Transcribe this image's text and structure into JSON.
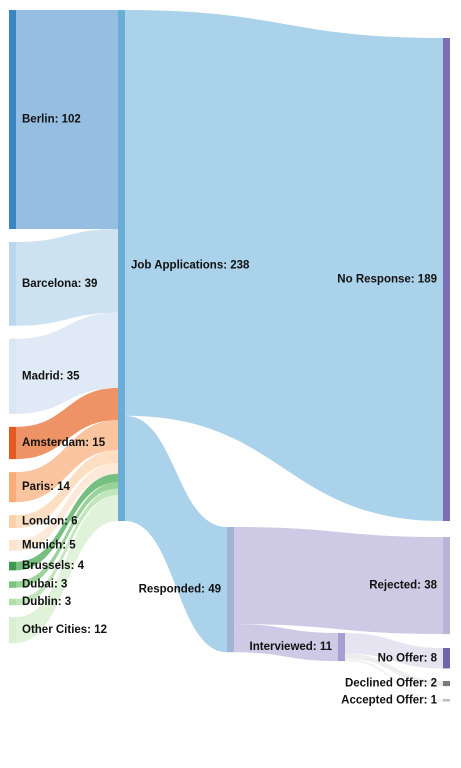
{
  "chart_data": {
    "type": "sankey",
    "title": "",
    "sources": [
      {
        "name": "Berlin",
        "value": 102,
        "label": "Berlin: 102",
        "color": "#3a84c1",
        "link": "#8fbadf"
      },
      {
        "name": "Barcelona",
        "value": 39,
        "label": "Barcelona: 39",
        "color": "#bad6ec",
        "link": "#c9e0f0"
      },
      {
        "name": "Madrid",
        "value": 35,
        "label": "Madrid: 35",
        "color": "#d9e7f5",
        "link": "#dde9f5"
      },
      {
        "name": "Amsterdam",
        "value": 15,
        "label": "Amsterdam: 15",
        "color": "#e45a22",
        "link": "#ec8d5d"
      },
      {
        "name": "Paris",
        "value": 14,
        "label": "Paris: 14",
        "color": "#f8ad76",
        "link": "#f9c199"
      },
      {
        "name": "London",
        "value": 6,
        "label": "London: 6",
        "color": "#fbd0a6",
        "link": "#fcdcc0"
      },
      {
        "name": "Munich",
        "value": 5,
        "label": "Munich: 5",
        "color": "#fde4cd",
        "link": "#fde8d6"
      },
      {
        "name": "Brussels",
        "value": 4,
        "label": "Brussels: 4",
        "color": "#3d9a50",
        "link": "#6fbc79"
      },
      {
        "name": "Dubai",
        "value": 3,
        "label": "Dubai: 3",
        "color": "#79c57d",
        "link": "#93d195"
      },
      {
        "name": "Dublin",
        "value": 3,
        "label": "Dublin: 3",
        "color": "#b0dfaa",
        "link": "#bfe5b8"
      },
      {
        "name": "Other Cities",
        "value": 12,
        "label": "Other Cities: 12",
        "color": "#d8efd1",
        "link": "#def2d8"
      }
    ],
    "total": {
      "name": "Job Applications",
      "value": 238,
      "label": "Job Applications: 238",
      "color": "#6aaed8"
    },
    "stage2": [
      {
        "name": "No Response",
        "value": 189,
        "label": "No Response: 189",
        "color": "#7d6db6",
        "link": "#a6d0ea"
      },
      {
        "name": "Responded",
        "value": 49,
        "label": "Responded: 49",
        "color": "#a3b3d4",
        "link": "#a6d0ea"
      }
    ],
    "stage3": [
      {
        "name": "Rejected",
        "value": 38,
        "label": "Rejected: 38",
        "color": "#b9b3d8",
        "link": "#cbc7e4"
      },
      {
        "name": "Interviewed",
        "value": 11,
        "label": "Interviewed: 11",
        "color": "#a49fd0",
        "link": "#cbc7e4"
      }
    ],
    "stage4": [
      {
        "name": "No Offer",
        "value": 8,
        "label": "No Offer: 8",
        "color": "#7263ad",
        "link": "#e6e3f1"
      },
      {
        "name": "Declined Offer",
        "value": 2,
        "label": "Declined Offer: 2",
        "color": "#7a7a7a",
        "link": "#ececec"
      },
      {
        "name": "Accepted Offer",
        "value": 1,
        "label": "Accepted Offer: 1",
        "color": "#bdbdbd",
        "link": "#f2f2f2"
      }
    ]
  }
}
